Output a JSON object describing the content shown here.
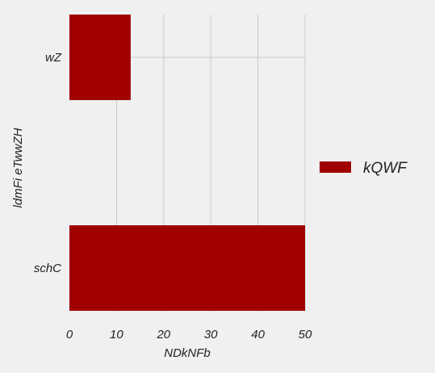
{
  "chart_data": {
    "type": "bar",
    "orientation": "horizontal",
    "title": "",
    "categories": [
      "wZ",
      "schC"
    ],
    "series": [
      {
        "name": "kQWF",
        "values": [
          13,
          50
        ],
        "color": "#a00000"
      }
    ],
    "xlabel": "NDkNFb",
    "ylabel": "ldmFi eTwwZH",
    "xlim": [
      0,
      50
    ],
    "xticks": [
      0,
      10,
      20,
      30,
      40,
      50
    ],
    "grid": true,
    "legend_position": "right"
  }
}
